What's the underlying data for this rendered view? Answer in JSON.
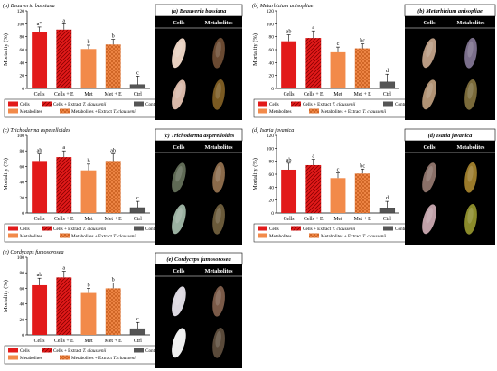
{
  "figure": {
    "legend_labels": {
      "cells": "Cells",
      "cells_extract_prefix": "Cells + Extract ",
      "metabolites": "Metabolites",
      "metabolites_extract_prefix": "Metabolites + Extract ",
      "extract_species": "T. claussenii",
      "control": "Control"
    },
    "photo_panels": [
      {
        "label": "(a) Beauveria bassiana",
        "col1": "Cells",
        "col2": "Metabolites",
        "larva_colors": [
          "#e8d0c0",
          "#6a4a32",
          "#d8b8a8",
          "#7a5a22"
        ]
      },
      {
        "label": "(b) Metarhizium anisopliae",
        "col1": "Cells",
        "col2": "Metabolites",
        "larva_colors": [
          "#b89a82",
          "#7a6e8a",
          "#b09274",
          "#7a6a3a"
        ]
      },
      {
        "label": "(c) Trichoderma asperelloides",
        "col1": "Cells",
        "col2": "Metabolites",
        "larva_colors": [
          "#5f6a55",
          "#8a6a4a",
          "#9ab0a0",
          "#6a5a3a"
        ]
      },
      {
        "label": "(d) Isaria javanica",
        "col1": "Cells",
        "col2": "Metabolites",
        "larva_colors": [
          "#8a7068",
          "#9a7a2a",
          "#c0a0a8",
          "#8a8a2a"
        ]
      },
      {
        "label": "(e) Cordyceps fumosorosea",
        "col1": "Cells",
        "col2": "Metabolites",
        "larva_colors": [
          "#dcd8e0",
          "#7a5a48",
          "#f0f0f0",
          "#5a4a3a"
        ]
      }
    ]
  },
  "chart_data": [
    {
      "type": "bar",
      "title": "(a) Beauveria bassiana",
      "ylabel": "Mortality (%)",
      "ylim": [
        0,
        120
      ],
      "yticks": [
        0,
        20,
        40,
        60,
        80,
        100,
        120
      ],
      "categories": [
        "Cells",
        "Cells + E",
        "Met",
        "Met + E",
        "Ctrl"
      ],
      "values": [
        87,
        91,
        61,
        68,
        6
      ],
      "errors": [
        8,
        9,
        6,
        8,
        13
      ],
      "letters": [
        "a*",
        "a",
        "b",
        "b",
        "c"
      ]
    },
    {
      "type": "bar",
      "title": "(b) Metarhizium anisopliae",
      "ylabel": "Mortality (%)",
      "ylim": [
        0,
        120
      ],
      "yticks": [
        0,
        20,
        40,
        60,
        80,
        100,
        120
      ],
      "categories": [
        "Cells",
        "Cells + E",
        "Met",
        "Met + E",
        "Ctrl"
      ],
      "values": [
        73,
        78,
        56,
        62,
        10
      ],
      "errors": [
        10,
        11,
        8,
        7,
        12
      ],
      "letters": [
        "ab",
        "a",
        "c",
        "bc",
        "d"
      ]
    },
    {
      "type": "bar",
      "title": "(c) Trichoderma asperelloides",
      "ylabel": "Mortality (%)",
      "ylim": [
        0,
        100
      ],
      "yticks": [
        0,
        20,
        40,
        60,
        80,
        100
      ],
      "categories": [
        "Cells",
        "Cells + E",
        "Met",
        "Met + E",
        "Ctrl"
      ],
      "values": [
        67,
        72,
        55,
        67,
        7
      ],
      "errors": [
        9,
        8,
        8,
        9,
        8
      ],
      "letters": [
        "ab",
        "a",
        "b",
        "ab",
        "c"
      ]
    },
    {
      "type": "bar",
      "title": "(d) Isaria javanica",
      "ylabel": "Mortality (%)",
      "ylim": [
        0,
        120
      ],
      "yticks": [
        0,
        20,
        40,
        60,
        80,
        100,
        120
      ],
      "categories": [
        "Cells",
        "Cells + E",
        "Met",
        "Met + E",
        "Ctrl"
      ],
      "values": [
        67,
        74,
        54,
        61,
        8
      ],
      "errors": [
        10,
        9,
        8,
        7,
        10
      ],
      "letters": [
        "ab",
        "a",
        "c",
        "bc",
        "d"
      ]
    },
    {
      "type": "bar",
      "title": "(e) Cordyceps fumosorosea",
      "ylabel": "Mortality (%)",
      "ylim": [
        0,
        100
      ],
      "yticks": [
        0,
        20,
        40,
        60,
        80,
        100
      ],
      "categories": [
        "Cells",
        "Cells + E",
        "Met",
        "Met + E",
        "Ctrl"
      ],
      "values": [
        64,
        74,
        54,
        60,
        8
      ],
      "errors": [
        9,
        8,
        6,
        7,
        8
      ],
      "letters": [
        "ab",
        "a",
        "b",
        "b",
        "c"
      ]
    }
  ]
}
